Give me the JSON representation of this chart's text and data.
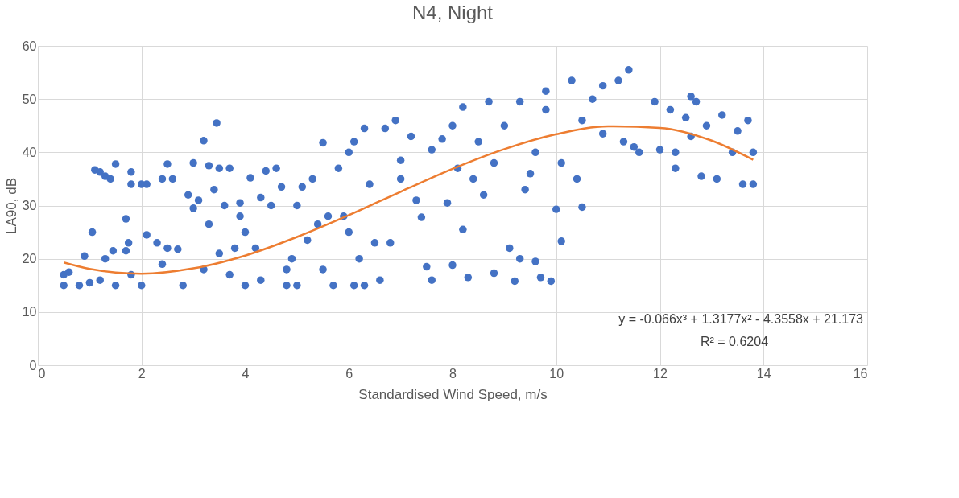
{
  "chart_data": {
    "type": "scatter",
    "title": "N4, Night",
    "xlabel": "Standardised Wind Speed, m/s",
    "ylabel": "LA90, dB",
    "xlim": [
      0,
      16
    ],
    "xticks": [
      0,
      2,
      4,
      6,
      8,
      10,
      12,
      14,
      16
    ],
    "ylim": [
      0,
      60
    ],
    "yticks": [
      0,
      10,
      20,
      30,
      40,
      50,
      60
    ],
    "grid": true,
    "legend": false,
    "marker": "circle",
    "annotations": [
      "y = -0.066x³ + 1.3177x² - 4.3558x + 21.173",
      "R² = 0.6204"
    ],
    "series": [
      {
        "color": "#4472c4",
        "x": [
          0.5,
          0.5,
          0.6,
          0.8,
          0.9,
          1.0,
          1.05,
          1.1,
          1.2,
          1.2,
          1.3,
          1.3,
          1.4,
          1.45,
          1.5,
          1.5,
          1.7,
          1.7,
          1.75,
          1.8,
          1.8,
          1.8,
          2.0,
          2.0,
          2.1,
          2.1,
          2.3,
          2.4,
          2.4,
          2.5,
          2.5,
          2.6,
          2.7,
          2.8,
          2.9,
          3.0,
          3.0,
          3.1,
          3.2,
          3.3,
          3.2,
          3.3,
          3.4,
          3.45,
          3.5,
          3.5,
          3.6,
          3.7,
          3.7,
          3.8,
          3.9,
          3.9,
          4.0,
          4.0,
          4.1,
          4.2,
          4.3,
          4.3,
          4.4,
          4.5,
          4.6,
          4.7,
          4.8,
          4.8,
          4.9,
          5.0,
          5.0,
          5.1,
          5.2,
          5.3,
          5.4,
          5.5,
          5.5,
          5.6,
          5.7,
          5.8,
          5.9,
          6.0,
          6.0,
          6.1,
          6.1,
          6.2,
          6.3,
          6.3,
          6.4,
          6.5,
          6.6,
          6.7,
          6.8,
          6.9,
          7.0,
          7.0,
          7.2,
          7.3,
          7.4,
          7.5,
          7.6,
          7.6,
          7.8,
          7.9,
          8.0,
          8.0,
          8.1,
          8.2,
          8.2,
          8.3,
          8.4,
          8.5,
          8.6,
          8.7,
          8.8,
          8.8,
          9.0,
          9.1,
          9.2,
          9.3,
          9.3,
          9.4,
          9.5,
          9.6,
          9.6,
          9.7,
          9.8,
          9.8,
          9.9,
          10.0,
          10.1,
          10.1,
          10.3,
          10.4,
          10.5,
          10.5,
          10.7,
          10.9,
          10.9,
          11.2,
          11.3,
          11.4,
          11.5,
          11.6,
          11.9,
          12.0,
          12.2,
          12.3,
          12.3,
          12.5,
          12.6,
          12.6,
          12.7,
          12.8,
          12.9,
          13.1,
          13.2,
          13.4,
          13.5,
          13.6,
          13.7,
          13.8,
          13.8
        ],
        "values": [
          15,
          17,
          17.5,
          15,
          20.5,
          15.5,
          25,
          36.7,
          36.3,
          16,
          20,
          35.5,
          35,
          21.5,
          37.8,
          15,
          27.5,
          21.5,
          23,
          36.3,
          34,
          17,
          15,
          34,
          34,
          24.5,
          23,
          19,
          35,
          37.8,
          22,
          35,
          21.8,
          15,
          32,
          29.5,
          38,
          31,
          42.2,
          37.5,
          18,
          26.5,
          33,
          45.5,
          37,
          21,
          30,
          37,
          17,
          22,
          28,
          30.5,
          15,
          25,
          35.2,
          22,
          31.5,
          16,
          36.5,
          30,
          37,
          33.5,
          15,
          18,
          20,
          30,
          15,
          33.5,
          23.5,
          35,
          26.5,
          41.8,
          18,
          28,
          15,
          37,
          28,
          40,
          25,
          15,
          42,
          20,
          44.5,
          15,
          34,
          23,
          16,
          44.5,
          23,
          46,
          38.5,
          35,
          43,
          31,
          27.8,
          18.5,
          40.5,
          16,
          42.5,
          30.5,
          18.8,
          45,
          37,
          48.5,
          25.5,
          16.5,
          35,
          42,
          32,
          49.5,
          38,
          17.3,
          45,
          22,
          15.8,
          20,
          49.5,
          33,
          36,
          19.5,
          40,
          16.5,
          51.5,
          48,
          15.8,
          29.3,
          23.3,
          38,
          53.5,
          35,
          29.7,
          46,
          50,
          52.5,
          43.5,
          53.5,
          42,
          55.5,
          41,
          40,
          49.5,
          40.5,
          48,
          37,
          40,
          46.5,
          50.5,
          43,
          49.5,
          35.5,
          45,
          35,
          47,
          40,
          44,
          34,
          46,
          40,
          34
        ]
      },
      {
        "type": "line",
        "color": "#ed7d31",
        "marker": "none",
        "line_style": "solid",
        "x": [
          0.5,
          1,
          2,
          3,
          4,
          5,
          6,
          7,
          8,
          9,
          10,
          11,
          12,
          13,
          13.8
        ],
        "values": [
          19.3,
          18.1,
          17.2,
          18.2,
          20.6,
          24.1,
          28.2,
          32.6,
          36.9,
          40.6,
          43.4,
          44.9,
          44.6,
          42.2,
          38.6
        ]
      }
    ]
  }
}
